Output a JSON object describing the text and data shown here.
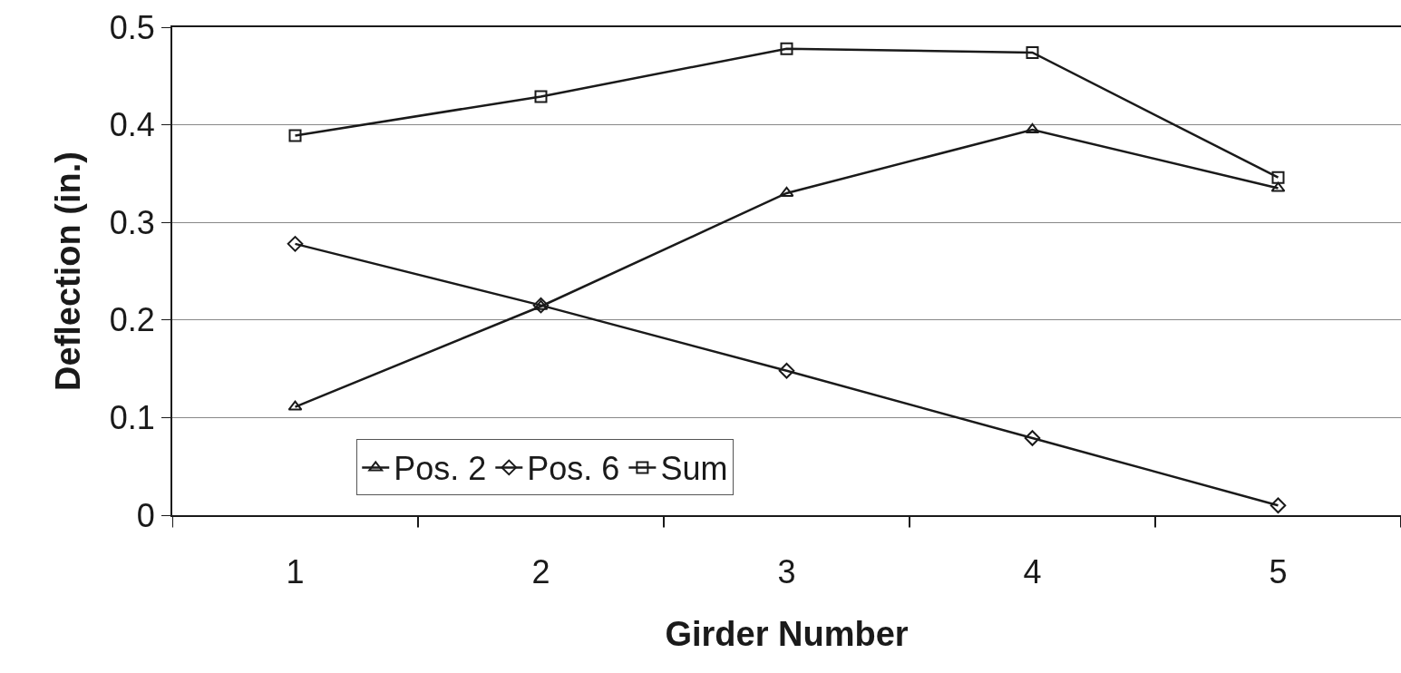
{
  "chart_data": {
    "type": "line",
    "xlabel": "Girder Number",
    "ylabel": "Deflection (in.)",
    "categories": [
      "1",
      "2",
      "3",
      "4",
      "5"
    ],
    "series": [
      {
        "name": "Pos. 2",
        "color": "#1a1a1a",
        "marker": "triangle",
        "values": [
          0.111,
          0.214,
          0.33,
          0.395,
          0.335
        ]
      },
      {
        "name": "Pos. 6",
        "color": "#1a1a1a",
        "marker": "diamond",
        "values": [
          0.278,
          0.215,
          0.148,
          0.079,
          0.01
        ]
      },
      {
        "name": "Sum",
        "color": "#1a1a1a",
        "marker": "square",
        "values": [
          0.389,
          0.429,
          0.478,
          0.474,
          0.346
        ]
      }
    ],
    "ylim": [
      0,
      0.5
    ],
    "yticks": [
      0,
      0.1,
      0.2,
      0.3,
      0.4,
      0.5
    ],
    "grid": "y",
    "legend": "bottom left",
    "line_style": "solid"
  }
}
